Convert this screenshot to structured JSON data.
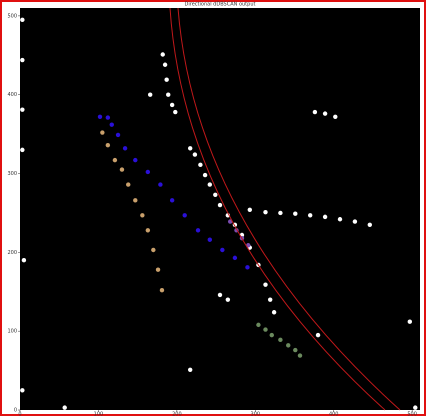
{
  "chart_data": {
    "type": "scatter",
    "title": "Directional dDBSCAN output",
    "xlim": [
      0,
      510
    ],
    "ylim": [
      0,
      510
    ],
    "xticks": [
      0,
      100,
      200,
      300,
      400,
      500
    ],
    "yticks": [
      0,
      100,
      200,
      300,
      400,
      500
    ],
    "series": [
      {
        "color": "#ffffff",
        "x": [
          217,
          223,
          230,
          236,
          242,
          249,
          255,
          265,
          274,
          283,
          293,
          304,
          313,
          319,
          324,
          293,
          313,
          332,
          351,
          370,
          389,
          408,
          427,
          446,
          182,
          185,
          187,
          189,
          194,
          198,
          376,
          389,
          402,
          3,
          3,
          3,
          3,
          5,
          3,
          255,
          265,
          166,
          217,
          380,
          57,
          504,
          497
        ],
        "values": [
          332,
          324,
          311,
          298,
          286,
          273,
          260,
          247,
          235,
          222,
          206,
          184,
          159,
          140,
          124,
          254,
          251,
          250,
          249,
          247,
          245,
          242,
          239,
          235,
          451,
          438,
          419,
          400,
          387,
          378,
          378,
          376,
          372,
          495,
          444,
          381,
          330,
          190,
          25,
          146,
          140,
          400,
          51,
          95,
          3,
          3,
          112
        ]
      },
      {
        "color": "#2a10d8",
        "x": [
          102,
          112,
          117,
          125,
          134,
          147,
          163,
          179,
          194,
          210,
          227,
          242,
          258,
          274,
          290
        ],
        "values": [
          372,
          371,
          362,
          349,
          332,
          317,
          302,
          286,
          266,
          247,
          228,
          216,
          203,
          193,
          181
        ]
      },
      {
        "color": "#c9a06c",
        "x": [
          105,
          112,
          121,
          130,
          138,
          147,
          156,
          163,
          170,
          176,
          181
        ],
        "values": [
          352,
          336,
          317,
          305,
          286,
          266,
          247,
          228,
          203,
          178,
          152
        ]
      },
      {
        "color": "#6b8a5e",
        "x": [
          304,
          313,
          321,
          332,
          342,
          351,
          357
        ],
        "values": [
          108,
          102,
          95,
          89,
          82,
          76,
          69
        ]
      },
      {
        "color": "#7a4bb0",
        "x": [
          268,
          276,
          283,
          291
        ],
        "values": [
          239,
          228,
          218,
          209
        ]
      }
    ]
  }
}
